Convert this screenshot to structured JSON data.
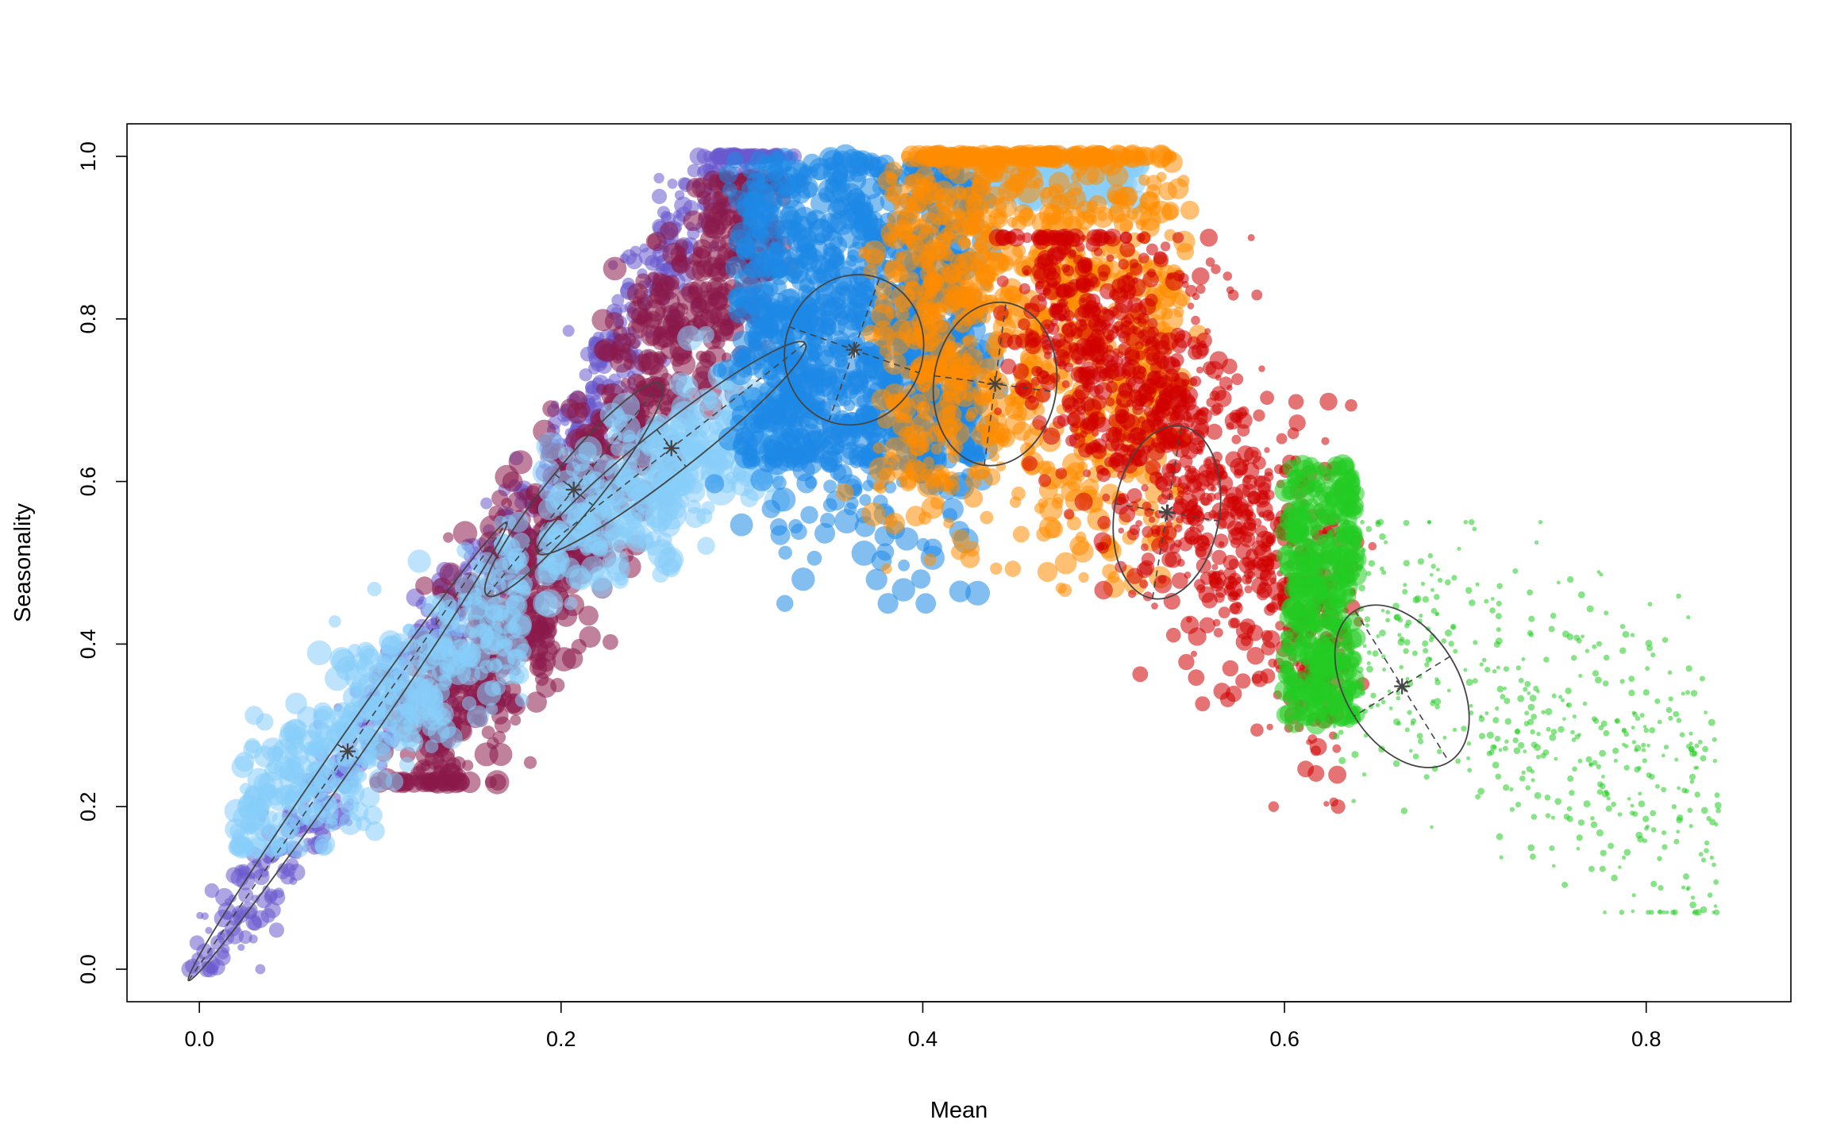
{
  "chart_data": {
    "type": "scatter",
    "title": "",
    "xlabel": "Mean",
    "ylabel": "Seasonality",
    "xlim": [
      -0.04,
      0.88
    ],
    "ylim": [
      -0.04,
      1.04
    ],
    "xticks": [
      0.0,
      0.2,
      0.4,
      0.6,
      0.8
    ],
    "xtick_labels": [
      "0.0",
      "0.2",
      "0.4",
      "0.6",
      "0.8"
    ],
    "yticks": [
      0.0,
      0.2,
      0.4,
      0.6,
      0.8,
      1.0
    ],
    "ytick_labels": [
      "0.0",
      "0.2",
      "0.4",
      "0.6",
      "0.8",
      "1.0"
    ],
    "grid": false,
    "legend": "none",
    "series": [
      {
        "color": "#6A5ACD",
        "approx_cloud": {
          "x_range": [
            0.0,
            0.32
          ],
          "y_range": [
            0.0,
            1.0
          ],
          "trend": "diagonal band from origin"
        },
        "centroid": [
          0.082,
          0.268
        ],
        "ellipse": {
          "center": [
            0.082,
            0.268
          ],
          "major_end": [
            0.17,
            0.55
          ],
          "minor_end": [
            0.075,
            0.27
          ]
        }
      },
      {
        "color": "#8B1A4A",
        "approx_cloud": {
          "x_range": [
            0.12,
            0.31
          ],
          "y_range": [
            0.25,
            0.95
          ],
          "trend": "diagonal band"
        },
        "centroid": [
          0.207,
          0.59
        ],
        "ellipse": {
          "center": [
            0.207,
            0.59
          ],
          "major_end": [
            0.255,
            0.72
          ],
          "minor_end": [
            0.22,
            0.58
          ]
        }
      },
      {
        "color": "#87CEFA",
        "approx_cloud": {
          "x_range": [
            0.02,
            0.52
          ],
          "y_range": [
            0.15,
            1.0
          ],
          "trend": "band with top cap"
        },
        "centroid": [
          0.261,
          0.641
        ],
        "ellipse": {
          "center": [
            0.261,
            0.641
          ],
          "major_end": [
            0.335,
            0.77
          ],
          "minor_end": [
            0.27,
            0.62
          ]
        }
      },
      {
        "color": "#1E88E5",
        "approx_cloud": {
          "x_range": [
            0.3,
            0.44
          ],
          "y_range": [
            0.45,
            1.0
          ],
          "trend": "vertical block"
        },
        "centroid": [
          0.362,
          0.762
        ],
        "ellipse": {
          "center": [
            0.362,
            0.762
          ],
          "major_end": [
            0.376,
            0.85
          ],
          "minor_end": [
            0.4,
            0.757
          ]
        }
      },
      {
        "color": "#FF8C00",
        "approx_cloud": {
          "x_range": [
            0.38,
            0.56
          ],
          "y_range": [
            0.25,
            1.0
          ],
          "trend": "vertical block"
        },
        "centroid": [
          0.44,
          0.72
        ],
        "ellipse": {
          "center": [
            0.44,
            0.72
          ],
          "major_end": [
            0.446,
            0.82
          ],
          "minor_end": [
            0.474,
            0.72
          ]
        }
      },
      {
        "color": "#D00000",
        "approx_cloud": {
          "x_range": [
            0.44,
            0.64
          ],
          "y_range": [
            0.2,
            0.92
          ],
          "trend": "falling band"
        },
        "centroid": [
          0.535,
          0.562
        ],
        "ellipse": {
          "center": [
            0.535,
            0.562
          ],
          "major_end": [
            0.543,
            0.668
          ],
          "minor_end": [
            0.564,
            0.558
          ]
        }
      },
      {
        "color": "#22CC22",
        "approx_cloud": {
          "x_range": [
            0.59,
            0.84
          ],
          "y_range": [
            0.07,
            0.65
          ],
          "trend": "falling spread"
        },
        "centroid": [
          0.665,
          0.348
        ],
        "ellipse": {
          "center": [
            0.665,
            0.348
          ],
          "major_end": [
            0.691,
            0.255
          ],
          "minor_end": [
            0.696,
            0.356
          ]
        }
      }
    ]
  }
}
